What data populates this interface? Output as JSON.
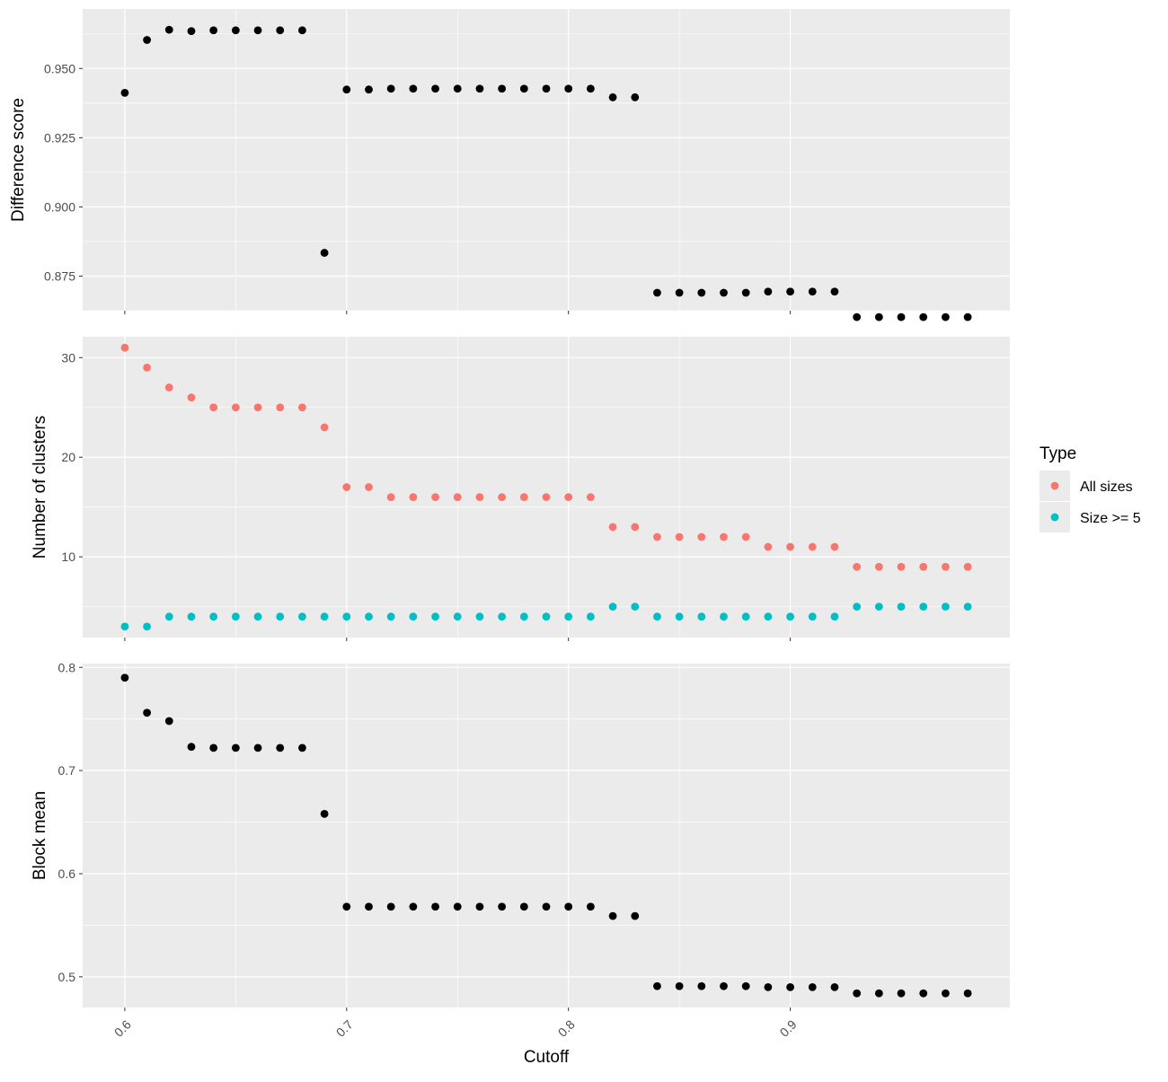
{
  "chart_data": [
    {
      "type": "scatter",
      "xlabel": "",
      "ylabel": "Difference score",
      "ylim": [
        0.8625,
        0.9715
      ],
      "yticks": [
        0.875,
        0.9,
        0.925,
        0.95
      ],
      "ytick_labels": [
        "0.875",
        "0.900",
        "0.925",
        "0.950"
      ],
      "xticks": [
        0.6,
        0.7,
        0.8,
        0.9
      ],
      "xtick_labels": [],
      "grid": true,
      "series": [
        {
          "color": "#000000",
          "x": [
            0.6,
            0.61,
            0.62,
            0.63,
            0.64,
            0.65,
            0.66,
            0.67,
            0.68,
            0.69,
            0.7,
            0.71,
            0.72,
            0.73,
            0.74,
            0.75,
            0.76,
            0.77,
            0.78,
            0.79,
            0.8,
            0.81,
            0.82,
            0.83,
            0.84,
            0.85,
            0.86,
            0.87,
            0.88,
            0.89,
            0.9,
            0.91,
            0.92,
            0.93,
            0.94,
            0.95,
            0.96,
            0.97,
            0.98
          ],
          "values": [
            0.9412,
            0.9603,
            0.964,
            0.9635,
            0.9638,
            0.9638,
            0.9638,
            0.9638,
            0.9638,
            0.8834,
            0.9424,
            0.9424,
            0.9427,
            0.9427,
            0.9427,
            0.9427,
            0.9427,
            0.9427,
            0.9427,
            0.9427,
            0.9427,
            0.9427,
            0.9396,
            0.9396,
            0.869,
            0.869,
            0.869,
            0.869,
            0.869,
            0.8694,
            0.8694,
            0.8694,
            0.8694,
            0.8602,
            0.8602,
            0.8602,
            0.8602,
            0.8602,
            0.8602
          ]
        }
      ]
    },
    {
      "type": "scatter",
      "xlabel": "",
      "ylabel": "Number of clusters",
      "ylim": [
        1.9,
        32.1
      ],
      "yticks": [
        10,
        20,
        30
      ],
      "ytick_labels": [
        "10",
        "20",
        "30"
      ],
      "xticks": [
        0.6,
        0.7,
        0.8,
        0.9
      ],
      "xtick_labels": [],
      "grid": true,
      "legend": {
        "title": "Type",
        "placement": "right",
        "entries": [
          "All sizes",
          "Size >= 5"
        ]
      },
      "series": [
        {
          "name": "All sizes",
          "color": "#F8766D",
          "x": [
            0.6,
            0.61,
            0.62,
            0.63,
            0.64,
            0.65,
            0.66,
            0.67,
            0.68,
            0.69,
            0.7,
            0.71,
            0.72,
            0.73,
            0.74,
            0.75,
            0.76,
            0.77,
            0.78,
            0.79,
            0.8,
            0.81,
            0.82,
            0.83,
            0.84,
            0.85,
            0.86,
            0.87,
            0.88,
            0.89,
            0.9,
            0.91,
            0.92,
            0.93,
            0.94,
            0.95,
            0.96,
            0.97,
            0.98
          ],
          "values": [
            31,
            29,
            27,
            26,
            25,
            25,
            25,
            25,
            25,
            23,
            17,
            17,
            16,
            16,
            16,
            16,
            16,
            16,
            16,
            16,
            16,
            16,
            13,
            13,
            12,
            12,
            12,
            12,
            12,
            11,
            11,
            11,
            11,
            9,
            9,
            9,
            9,
            9,
            9
          ]
        },
        {
          "name": "Size >= 5",
          "color": "#00BFC4",
          "x": [
            0.6,
            0.61,
            0.62,
            0.63,
            0.64,
            0.65,
            0.66,
            0.67,
            0.68,
            0.69,
            0.7,
            0.71,
            0.72,
            0.73,
            0.74,
            0.75,
            0.76,
            0.77,
            0.78,
            0.79,
            0.8,
            0.81,
            0.82,
            0.83,
            0.84,
            0.85,
            0.86,
            0.87,
            0.88,
            0.89,
            0.9,
            0.91,
            0.92,
            0.93,
            0.94,
            0.95,
            0.96,
            0.97,
            0.98
          ],
          "values": [
            3,
            3,
            4,
            4,
            4,
            4,
            4,
            4,
            4,
            4,
            4,
            4,
            4,
            4,
            4,
            4,
            4,
            4,
            4,
            4,
            4,
            4,
            5,
            5,
            4,
            4,
            4,
            4,
            4,
            4,
            4,
            4,
            4,
            5,
            5,
            5,
            5,
            5,
            5
          ]
        }
      ]
    },
    {
      "type": "scatter",
      "xlabel": "Cutoff",
      "ylabel": "Block mean",
      "ylim": [
        0.4703,
        0.8037
      ],
      "yticks": [
        0.5,
        0.6,
        0.7,
        0.8
      ],
      "ytick_labels": [
        "0.5",
        "0.6",
        "0.7",
        "0.8"
      ],
      "xticks": [
        0.6,
        0.7,
        0.8,
        0.9
      ],
      "xtick_labels": [
        "0.6",
        "0.7",
        "0.8",
        "0.9"
      ],
      "grid": true,
      "series": [
        {
          "color": "#000000",
          "x": [
            0.6,
            0.61,
            0.62,
            0.63,
            0.64,
            0.65,
            0.66,
            0.67,
            0.68,
            0.69,
            0.7,
            0.71,
            0.72,
            0.73,
            0.74,
            0.75,
            0.76,
            0.77,
            0.78,
            0.79,
            0.8,
            0.81,
            0.82,
            0.83,
            0.84,
            0.85,
            0.86,
            0.87,
            0.88,
            0.89,
            0.9,
            0.91,
            0.92,
            0.93,
            0.94,
            0.95,
            0.96,
            0.97,
            0.98
          ],
          "values": [
            0.79,
            0.756,
            0.748,
            0.723,
            0.722,
            0.722,
            0.722,
            0.722,
            0.722,
            0.658,
            0.568,
            0.568,
            0.568,
            0.568,
            0.568,
            0.568,
            0.568,
            0.568,
            0.568,
            0.568,
            0.568,
            0.568,
            0.559,
            0.559,
            0.491,
            0.491,
            0.491,
            0.491,
            0.491,
            0.49,
            0.49,
            0.49,
            0.49,
            0.484,
            0.484,
            0.484,
            0.484,
            0.484,
            0.484
          ]
        }
      ]
    }
  ]
}
